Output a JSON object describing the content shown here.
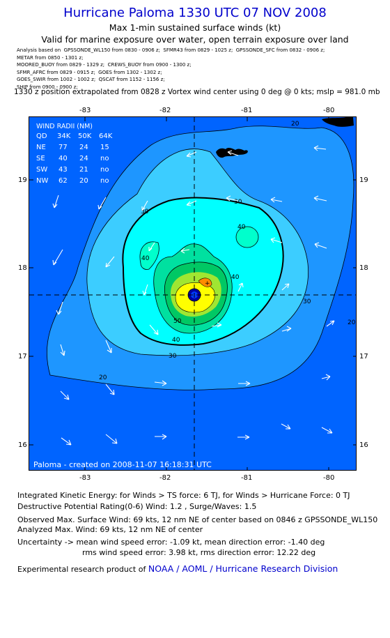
{
  "header": {
    "title": "Hurricane Paloma 1330 UTC 07 NOV 2008",
    "subtitle1": "Max 1-min sustained surface winds (kt)",
    "subtitle2": "Valid for marine exposure over water, open terrain exposure over land"
  },
  "analysis_lines": [
    "Analysis based on  GPSSONDE_WL150 from 0830 - 0906 z;  SFMR43 from 0829 - 1025 z;  GPSSONDE_SFC from 0832 - 0906 z;",
    "METAR from 0850 - 1301 z;",
    "MOORED_BUOY from 0829 - 1329 z;  CREWS_BUOY from 0900 - 1300 z;",
    "SFMR_AFRC from 0829 - 0915 z;  GOES from 1302 - 1302 z;",
    "GOES_SWIR from 1002 - 1002 z;  QSCAT from 1152 - 1156 z;",
    "SHIP from 0900 - 0900 z;"
  ],
  "position_line": "1330 z position extrapolated from 0828 z Vortex wind center using 0 deg @ 0 kts; mslp = 981.0 mb",
  "map": {
    "lon_ticks": [
      "-83",
      "-82",
      "-81",
      "-80"
    ],
    "lat_ticks": [
      "19",
      "18",
      "17",
      "16"
    ],
    "contour_labels": [
      "20",
      "30",
      "40",
      "50"
    ],
    "credit": "Paloma  -  created on 2008-11-07 16:18:31 UTC",
    "wind_radii": {
      "title": "WIND RADII (NM)",
      "header": [
        "QD",
        "34K",
        "50K",
        "64K"
      ],
      "rows": [
        [
          "NE",
          "77",
          "24",
          "15"
        ],
        [
          "SE",
          "40",
          "24",
          "no"
        ],
        [
          "SW",
          "43",
          "21",
          "no"
        ],
        [
          "NW",
          "62",
          "20",
          "no"
        ]
      ]
    },
    "colors": {
      "background": "#0064ff",
      "level20": "#1e96ff",
      "level30": "#3ccdff",
      "level40": "#00ffff",
      "level50": "#00c864",
      "level60": "#ffff00",
      "level70": "#0000a0"
    }
  },
  "footer": {
    "ike_line": "Integrated Kinetic Energy:  for Winds > TS force: 6 TJ,  for Winds > Hurricane Force: 0 TJ",
    "dpr_line": "Destructive Potential Rating(0-6)   Wind: 1.2 , Surge/Waves: 1.5",
    "obs_line": "Observed Max. Surface Wind: 69 kts, 12 nm NE of center based on 0846 z GPSSONDE_WL150",
    "analyzed_line": "Analyzed Max. Wind: 69 kts, 12 nm NE of center",
    "uncert_line1": "Uncertainty -> mean wind speed error:  -1.09 kt,   mean direction error:  -1.40 deg",
    "uncert_line2": "rms wind speed error: 3.98 kt,   rms direction error: 12.22 deg",
    "credit_prefix": "Experimental research product of ",
    "credit_org": "NOAA / AOML / Hurricane Research Division"
  }
}
